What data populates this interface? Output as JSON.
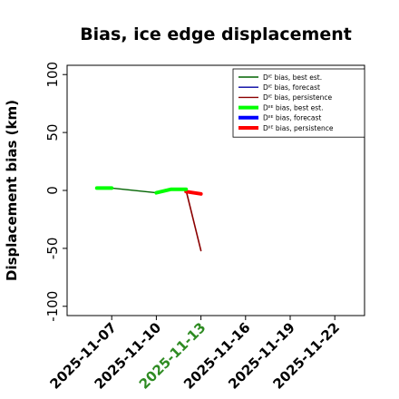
{
  "chart_data": {
    "type": "line",
    "title": "Bias, ice edge displacement",
    "ylabel": "Displacement bias (km)",
    "xlabel": "",
    "ylim": [
      -108,
      108
    ],
    "xlim": [
      "2025-11-04",
      "2025-11-24"
    ],
    "yticks": [
      100,
      50,
      0,
      -50,
      -100
    ],
    "xticks": [
      "2025-11-07",
      "2025-11-10",
      "2025-11-13",
      "2025-11-16",
      "2025-11-19",
      "2025-11-22"
    ],
    "highlight_xtick": "2025-11-13",
    "highlight_color": "#2e8b22",
    "grid": false,
    "legend_position": "top-right",
    "series": [
      {
        "name": "Dᴵᴱ bias, best est.",
        "color": "#006400",
        "width": 1.4,
        "points": [
          [
            "2025-11-06",
            2
          ],
          [
            "2025-11-07",
            2
          ],
          [
            "2025-11-10",
            -2
          ],
          [
            "2025-11-11",
            1
          ],
          [
            "2025-11-12",
            1
          ]
        ]
      },
      {
        "name": "Dᴵᴱ bias, forecast",
        "color": "#0000a0",
        "width": 1.4,
        "points": []
      },
      {
        "name": "Dᴵᴱ bias, persistence",
        "color": "#8b0000",
        "width": 1.6,
        "points": [
          [
            "2025-11-12",
            0
          ],
          [
            "2025-11-13",
            -52
          ]
        ]
      },
      {
        "name": "Dᴵᴵᴱ bias, best est.",
        "color": "#00ff00",
        "width": 4,
        "points": [
          [
            "2025-11-06",
            2
          ],
          [
            "2025-11-07",
            2
          ]
        ]
      },
      {
        "name": "Dᴵᴵᴱ bias, forecast",
        "color": "#0000ff",
        "width": 4,
        "points": []
      },
      {
        "name": "Dᴵᴵᴱ bias, persistence",
        "color": "#ff0000",
        "width": 4,
        "points": [
          [
            "2025-11-12",
            -1
          ],
          [
            "2025-11-13",
            -3
          ]
        ]
      },
      {
        "name": "",
        "color": "#00ff00",
        "width": 4,
        "points": [
          [
            "2025-11-10",
            -2
          ],
          [
            "2025-11-11",
            1
          ],
          [
            "2025-11-12",
            1
          ]
        ]
      }
    ],
    "legend": [
      {
        "label": "Dᴵᴱ bias, best est.",
        "color": "#006400",
        "width": 1.4
      },
      {
        "label": "Dᴵᴱ bias, forecast",
        "color": "#0000a0",
        "width": 1.4
      },
      {
        "label": "Dᴵᴱ bias, persistence",
        "color": "#8b0000",
        "width": 1.4
      },
      {
        "label": "Dᴵᴵᴱ bias, best est.",
        "color": "#00ff00",
        "width": 4
      },
      {
        "label": "Dᴵᴵᴱ bias, forecast",
        "color": "#0000ff",
        "width": 4
      },
      {
        "label": "Dᴵᴵᴱ bias, persistence",
        "color": "#ff0000",
        "width": 4
      }
    ]
  }
}
